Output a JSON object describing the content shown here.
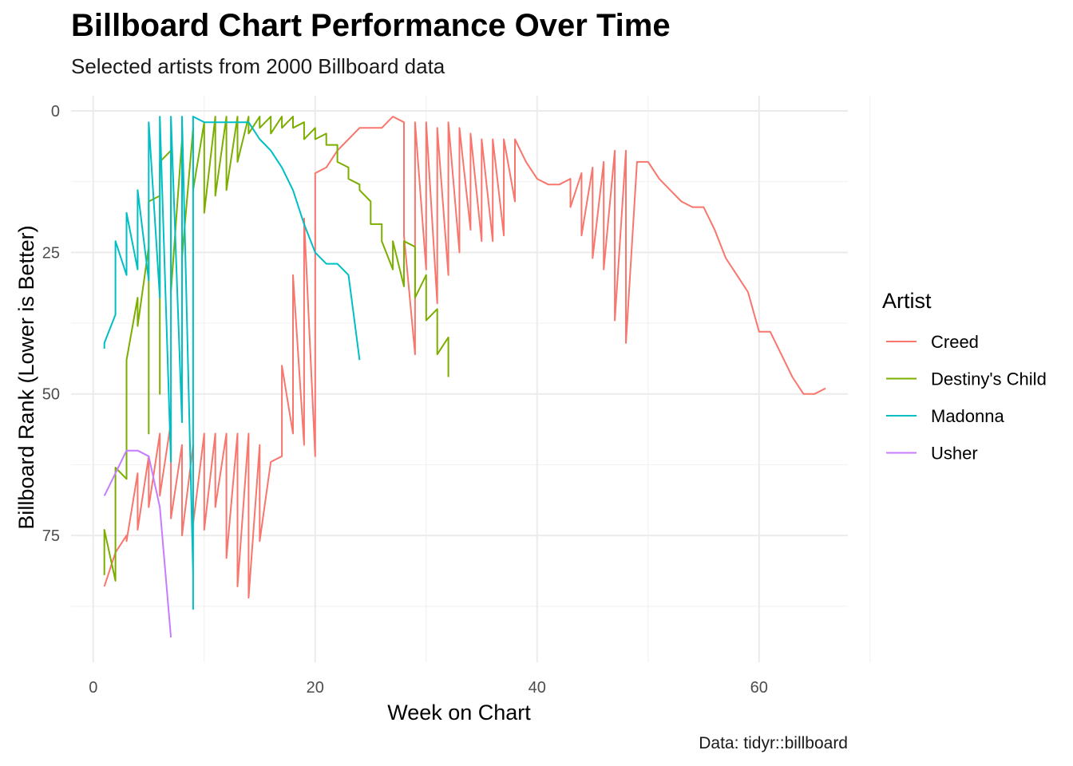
{
  "title": "Billboard Chart Performance Over Time",
  "subtitle": "Selected artists from 2000 Billboard data",
  "caption": "Data: tidyr::billboard",
  "chart_data": {
    "type": "line",
    "title": "Billboard Chart Performance Over Time",
    "subtitle": "Selected artists from 2000 Billboard data",
    "xlabel": "Week on Chart",
    "ylabel": "Billboard Rank (Lower is Better)",
    "xlim": [
      -2,
      68
    ],
    "ylim": [
      0,
      95
    ],
    "y_reversed": true,
    "x_ticks": [
      0,
      20,
      40,
      60
    ],
    "y_ticks": [
      0,
      25,
      50,
      75
    ],
    "grid": true,
    "legend_title": "Artist",
    "legend_position": "right",
    "series": [
      {
        "name": "Creed",
        "color": "#F8766D",
        "points": [
          [
            1,
            84
          ],
          [
            2,
            78
          ],
          [
            3,
            75
          ],
          [
            3,
            76
          ],
          [
            4,
            64
          ],
          [
            4,
            74
          ],
          [
            5,
            61
          ],
          [
            5,
            70
          ],
          [
            6,
            57
          ],
          [
            6,
            68
          ],
          [
            7,
            55
          ],
          [
            7,
            72
          ],
          [
            8,
            59
          ],
          [
            8,
            75
          ],
          [
            9,
            59
          ],
          [
            9,
            73
          ],
          [
            10,
            57
          ],
          [
            10,
            74
          ],
          [
            11,
            57
          ],
          [
            11,
            70
          ],
          [
            12,
            57
          ],
          [
            12,
            79
          ],
          [
            13,
            57
          ],
          [
            13,
            84
          ],
          [
            14,
            57
          ],
          [
            14,
            86
          ],
          [
            15,
            59
          ],
          [
            15,
            76
          ],
          [
            16,
            62
          ],
          [
            17,
            61
          ],
          [
            17,
            45
          ],
          [
            18,
            57
          ],
          [
            18,
            29
          ],
          [
            19,
            59
          ],
          [
            19,
            19
          ],
          [
            20,
            61
          ],
          [
            20,
            11
          ],
          [
            21,
            10
          ],
          [
            22,
            7
          ],
          [
            23,
            5
          ],
          [
            24,
            3
          ],
          [
            25,
            3
          ],
          [
            26,
            3
          ],
          [
            27,
            1
          ],
          [
            28,
            2
          ],
          [
            28,
            22
          ],
          [
            29,
            43
          ],
          [
            29,
            2
          ],
          [
            30,
            28
          ],
          [
            30,
            2
          ],
          [
            31,
            34
          ],
          [
            31,
            3
          ],
          [
            32,
            29
          ],
          [
            32,
            2
          ],
          [
            33,
            25
          ],
          [
            33,
            3
          ],
          [
            34,
            21
          ],
          [
            34,
            4
          ],
          [
            35,
            23
          ],
          [
            35,
            5
          ],
          [
            36,
            23
          ],
          [
            36,
            5
          ],
          [
            37,
            22
          ],
          [
            37,
            5
          ],
          [
            38,
            16
          ],
          [
            38,
            5
          ],
          [
            39,
            9
          ],
          [
            40,
            12
          ],
          [
            41,
            13
          ],
          [
            42,
            13
          ],
          [
            43,
            12
          ],
          [
            43,
            17
          ],
          [
            44,
            11
          ],
          [
            44,
            22
          ],
          [
            45,
            10
          ],
          [
            45,
            26
          ],
          [
            46,
            9
          ],
          [
            46,
            28
          ],
          [
            47,
            7
          ],
          [
            47,
            37
          ],
          [
            48,
            7
          ],
          [
            48,
            41
          ],
          [
            49,
            9
          ],
          [
            50,
            9
          ],
          [
            51,
            12
          ],
          [
            52,
            14
          ],
          [
            53,
            16
          ],
          [
            54,
            17
          ],
          [
            55,
            17
          ],
          [
            56,
            21
          ],
          [
            57,
            26
          ],
          [
            58,
            29
          ],
          [
            59,
            32
          ],
          [
            60,
            39
          ],
          [
            61,
            39
          ],
          [
            62,
            43
          ],
          [
            63,
            47
          ],
          [
            64,
            50
          ],
          [
            65,
            50
          ],
          [
            66,
            49
          ]
        ]
      },
      {
        "name": "Destiny's Child",
        "color": "#7CAE00",
        "points": [
          [
            1,
            82
          ],
          [
            1,
            74
          ],
          [
            2,
            83
          ],
          [
            2,
            63
          ],
          [
            3,
            65
          ],
          [
            3,
            44
          ],
          [
            4,
            33
          ],
          [
            4,
            38
          ],
          [
            5,
            24
          ],
          [
            5,
            57
          ],
          [
            5,
            16
          ],
          [
            6,
            15
          ],
          [
            6,
            50
          ],
          [
            6,
            9
          ],
          [
            7,
            7
          ],
          [
            7,
            32
          ],
          [
            8,
            5
          ],
          [
            8,
            26
          ],
          [
            9,
            3
          ],
          [
            9,
            14
          ],
          [
            10,
            2
          ],
          [
            10,
            18
          ],
          [
            11,
            1
          ],
          [
            11,
            15
          ],
          [
            12,
            1
          ],
          [
            12,
            14
          ],
          [
            13,
            1
          ],
          [
            13,
            9
          ],
          [
            14,
            1
          ],
          [
            14,
            4
          ],
          [
            15,
            1
          ],
          [
            15,
            3
          ],
          [
            16,
            1
          ],
          [
            16,
            4
          ],
          [
            17,
            1
          ],
          [
            17,
            3
          ],
          [
            18,
            1
          ],
          [
            18,
            3
          ],
          [
            19,
            2
          ],
          [
            19,
            5
          ],
          [
            20,
            3
          ],
          [
            20,
            5
          ],
          [
            21,
            4
          ],
          [
            21,
            6
          ],
          [
            22,
            6
          ],
          [
            22,
            9
          ],
          [
            23,
            10
          ],
          [
            23,
            12
          ],
          [
            24,
            13
          ],
          [
            24,
            14
          ],
          [
            25,
            16
          ],
          [
            25,
            20
          ],
          [
            26,
            20
          ],
          [
            26,
            23
          ],
          [
            27,
            28
          ],
          [
            27,
            23
          ],
          [
            28,
            31
          ],
          [
            28,
            23
          ],
          [
            29,
            24
          ],
          [
            29,
            33
          ],
          [
            30,
            29
          ],
          [
            30,
            37
          ],
          [
            31,
            35
          ],
          [
            31,
            43
          ],
          [
            32,
            40
          ],
          [
            32,
            47
          ]
        ]
      },
      {
        "name": "Madonna",
        "color": "#00BFC4",
        "points": [
          [
            1,
            42
          ],
          [
            1,
            41
          ],
          [
            2,
            36
          ],
          [
            2,
            23
          ],
          [
            3,
            29
          ],
          [
            3,
            18
          ],
          [
            4,
            28
          ],
          [
            4,
            14
          ],
          [
            5,
            30
          ],
          [
            5,
            2
          ],
          [
            6,
            33
          ],
          [
            6,
            1
          ],
          [
            7,
            62
          ],
          [
            7,
            1
          ],
          [
            8,
            55
          ],
          [
            8,
            1
          ],
          [
            9,
            82
          ],
          [
            9,
            88
          ],
          [
            9,
            1
          ],
          [
            10,
            2
          ],
          [
            11,
            2
          ],
          [
            12,
            2
          ],
          [
            13,
            2
          ],
          [
            14,
            2
          ],
          [
            15,
            5
          ],
          [
            16,
            7
          ],
          [
            17,
            10
          ],
          [
            18,
            14
          ],
          [
            19,
            20
          ],
          [
            20,
            25
          ],
          [
            21,
            27
          ],
          [
            22,
            27
          ],
          [
            23,
            29
          ],
          [
            24,
            44
          ]
        ]
      },
      {
        "name": "Usher",
        "color": "#C77CFF",
        "points": [
          [
            1,
            68
          ],
          [
            2,
            64
          ],
          [
            3,
            60
          ],
          [
            4,
            60
          ],
          [
            5,
            61
          ],
          [
            6,
            70
          ],
          [
            7,
            93
          ]
        ]
      }
    ]
  }
}
